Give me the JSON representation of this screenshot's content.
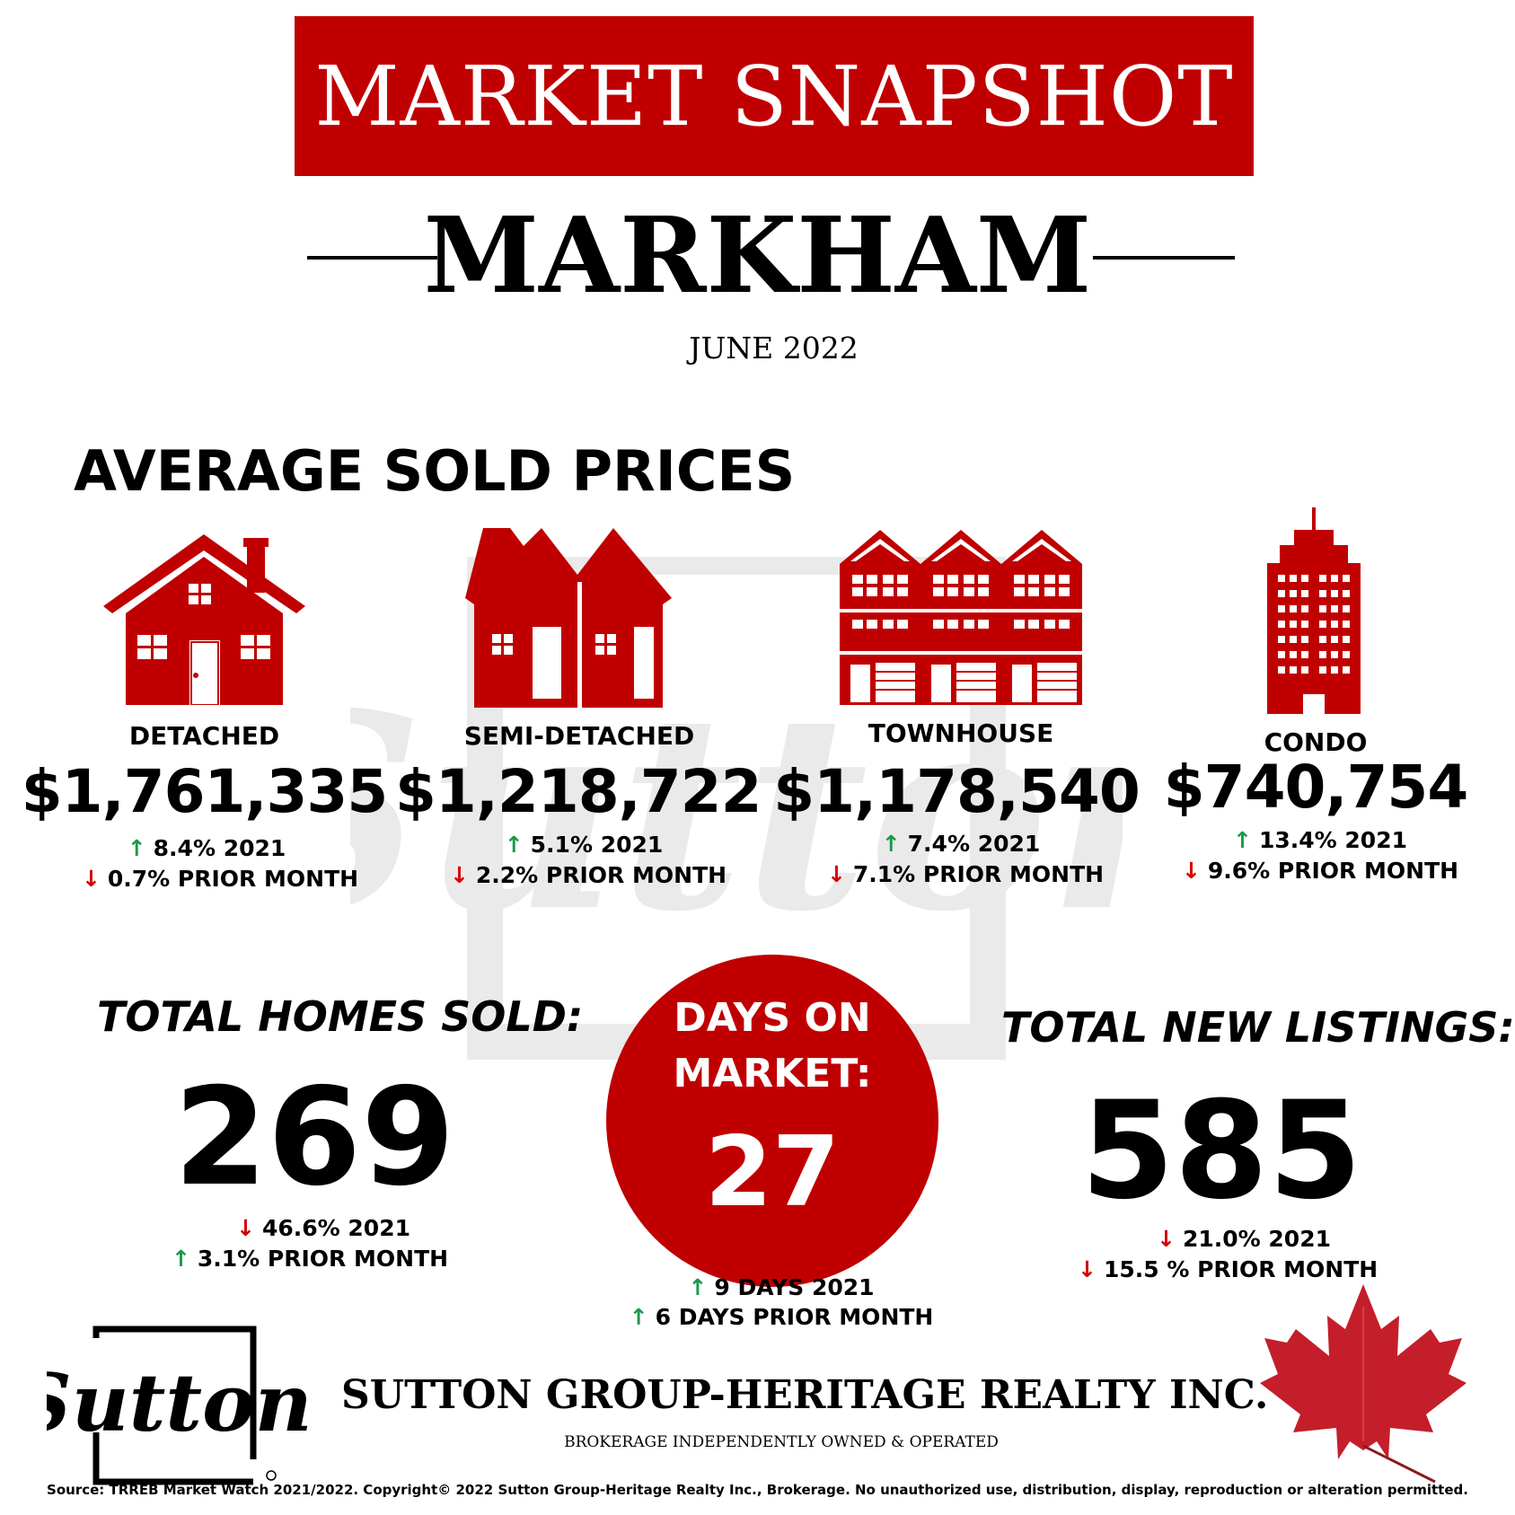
{
  "header": {
    "title": "MARKET SNAPSHOT",
    "city": "MARKHAM",
    "date": "JUNE 2022"
  },
  "colors": {
    "brand_red": "#c00000",
    "up_green": "#1a9a4a",
    "down_red": "#d40000"
  },
  "prices": {
    "section_title": "AVERAGE SOLD PRICES",
    "items": [
      {
        "icon": "detached-house-icon",
        "label": "DETACHED",
        "price": "$1,761,335",
        "yoy": "8.4% 2021",
        "yoy_dir": "up",
        "mom": "0.7% PRIOR MONTH",
        "mom_dir": "down"
      },
      {
        "icon": "semi-detached-house-icon",
        "label": "SEMI-DETACHED",
        "price": "$1,218,722",
        "yoy": "5.1% 2021",
        "yoy_dir": "up",
        "mom": "2.2% PRIOR MONTH",
        "mom_dir": "down"
      },
      {
        "icon": "townhouse-icon",
        "label": "TOWNHOUSE",
        "price": "$1,178,540",
        "yoy": "7.4% 2021",
        "yoy_dir": "up",
        "mom": "7.1% PRIOR MONTH",
        "mom_dir": "down"
      },
      {
        "icon": "condo-tower-icon",
        "label": "CONDO",
        "price": "$740,754",
        "yoy": "13.4% 2021",
        "yoy_dir": "up",
        "mom": "9.6% PRIOR MONTH",
        "mom_dir": "down"
      }
    ]
  },
  "homes_sold": {
    "label": "TOTAL HOMES SOLD:",
    "value": "269",
    "yoy": "46.6% 2021",
    "yoy_dir": "down",
    "mom": "3.1% PRIOR MONTH",
    "mom_dir": "up"
  },
  "days_on_market": {
    "label_line1": "DAYS ON",
    "label_line2": "MARKET:",
    "value": "27",
    "yoy": "9 DAYS 2021",
    "yoy_dir": "up",
    "mom": "6 DAYS PRIOR MONTH",
    "mom_dir": "up"
  },
  "new_listings": {
    "label": "TOTAL NEW LISTINGS:",
    "value": "585",
    "yoy": "21.0% 2021",
    "yoy_dir": "down",
    "mom": "15.5 % PRIOR MONTH",
    "mom_dir": "down"
  },
  "branding": {
    "logo_text": "Sutton",
    "company": "SUTTON GROUP-HERITAGE REALTY INC.",
    "tagline": "BROKERAGE INDEPENDENTLY OWNED & OPERATED",
    "leaf_icon": "maple-leaf-icon"
  },
  "footer": {
    "source": "Source: TRREB Market Watch 2021/2022. Copyright© 2022 Sutton Group-Heritage Realty Inc., Brokerage. No unauthorized use, distribution, display, reproduction or alteration permitted."
  }
}
